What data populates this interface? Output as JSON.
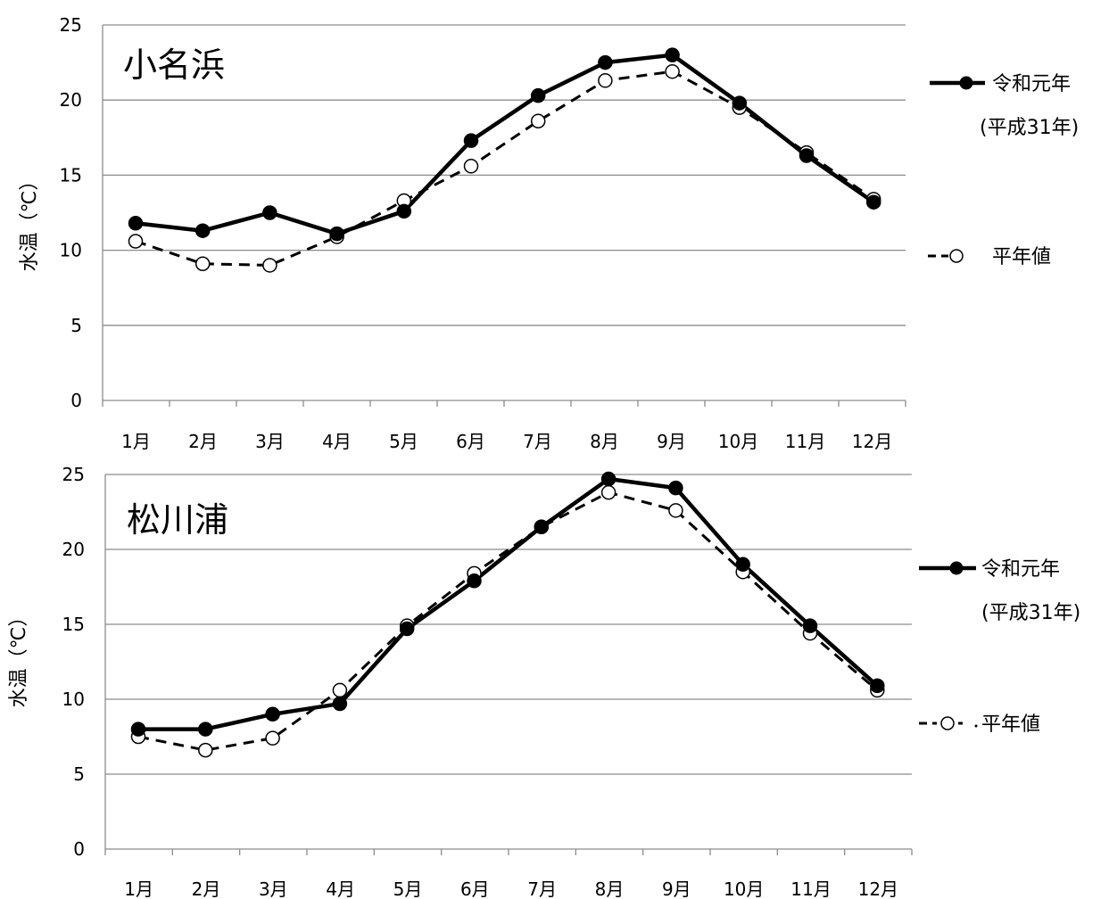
{
  "chart_data": [
    {
      "type": "line",
      "title": "小名浜",
      "ylabel": "水温（℃）",
      "ylim": [
        0,
        25
      ],
      "yticks": [
        "0",
        "5",
        "10",
        "15",
        "20",
        "25"
      ],
      "categories": [
        "1月",
        "2月",
        "3月",
        "4月",
        "5月",
        "6月",
        "7月",
        "8月",
        "9月",
        "10月",
        "11月",
        "12月"
      ],
      "grid": true,
      "legend_position": "right",
      "series": [
        {
          "name": "令和元年",
          "name_sub": "(平成31年)",
          "style": "solid",
          "marker": "filled-circle",
          "values": [
            11.8,
            11.3,
            12.5,
            11.1,
            12.6,
            17.3,
            20.3,
            22.5,
            23.0,
            19.8,
            16.3,
            13.2
          ]
        },
        {
          "name": "平年値",
          "style": "dashed",
          "marker": "open-circle",
          "values": [
            10.6,
            9.1,
            9.0,
            10.9,
            13.3,
            15.6,
            18.6,
            21.3,
            21.9,
            19.5,
            16.5,
            13.4
          ]
        }
      ]
    },
    {
      "type": "line",
      "title": "松川浦",
      "ylabel": "水温（℃）",
      "ylim": [
        0,
        25
      ],
      "yticks": [
        "0",
        "5",
        "10",
        "15",
        "20",
        "25"
      ],
      "categories": [
        "1月",
        "2月",
        "3月",
        "4月",
        "5月",
        "6月",
        "7月",
        "8月",
        "9月",
        "10月",
        "11月",
        "12月"
      ],
      "grid": true,
      "legend_position": "right",
      "series": [
        {
          "name": "令和元年",
          "name_sub": "(平成31年)",
          "style": "solid",
          "marker": "filled-circle",
          "values": [
            8.0,
            8.0,
            9.0,
            9.7,
            14.7,
            17.9,
            21.5,
            24.7,
            24.1,
            19.0,
            14.9,
            10.9
          ]
        },
        {
          "name": "平年値",
          "style": "dashed",
          "marker": "open-circle",
          "values": [
            7.5,
            6.6,
            7.4,
            10.6,
            14.9,
            18.4,
            21.5,
            23.8,
            22.6,
            18.5,
            14.4,
            10.6
          ]
        }
      ]
    }
  ]
}
